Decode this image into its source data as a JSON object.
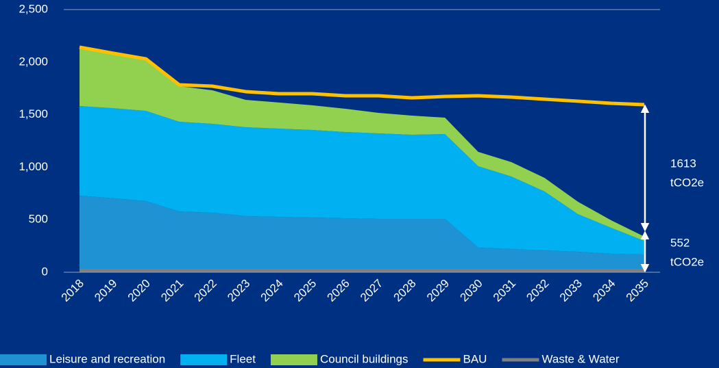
{
  "chart_data": {
    "type": "area",
    "stacked": true,
    "categories": [
      "2018",
      "2019",
      "2020",
      "2021",
      "2022",
      "2023",
      "2024",
      "2025",
      "2026",
      "2027",
      "2028",
      "2029",
      "2030",
      "2031",
      "2032",
      "2033",
      "2034",
      "2035"
    ],
    "series": [
      {
        "name": "Leisure and recreation",
        "type": "area",
        "color": "#1f92d4",
        "values": [
          729,
          705,
          677,
          579,
          566,
          534,
          527,
          521,
          514,
          508,
          508,
          508,
          234,
          221,
          208,
          195,
          176,
          169
        ]
      },
      {
        "name": "Fleet",
        "type": "area",
        "color": "#00b0f0",
        "values": [
          853,
          857,
          859,
          853,
          847,
          846,
          840,
          833,
          821,
          814,
          801,
          807,
          775,
          690,
          560,
          358,
          247,
          130
        ]
      },
      {
        "name": "Council buildings",
        "type": "area",
        "color": "#92d050",
        "values": [
          553,
          508,
          489,
          339,
          319,
          261,
          248,
          235,
          221,
          195,
          182,
          156,
          137,
          137,
          130,
          118,
          72,
          40
        ]
      },
      {
        "name": "BAU",
        "type": "line",
        "color": "#ffc000",
        "values": [
          2142,
          2085,
          2031,
          1784,
          1771,
          1719,
          1699,
          1699,
          1680,
          1680,
          1660,
          1673,
          1680,
          1667,
          1647,
          1628,
          1608,
          1595
        ]
      },
      {
        "name": "Waste & Water",
        "type": "line",
        "color": "#7f7f7f",
        "values": [
          15,
          15,
          15,
          15,
          15,
          15,
          15,
          15,
          15,
          15,
          15,
          15,
          15,
          15,
          15,
          15,
          15,
          15
        ]
      }
    ],
    "ylim": [
      0,
      2500
    ],
    "yticks": [
      0,
      500,
      {
        "value": 1000,
        "label": "1,000"
      },
      {
        "value": 1500,
        "label": "1,500"
      },
      {
        "value": 2000,
        "label": "2,000"
      },
      {
        "value": 2500,
        "label": "2,500"
      }
    ],
    "grid": false,
    "legend": "bottom",
    "annotations": [
      [
        "1613",
        "tCO2e"
      ],
      [
        "552",
        "tCO2e"
      ]
    ]
  }
}
